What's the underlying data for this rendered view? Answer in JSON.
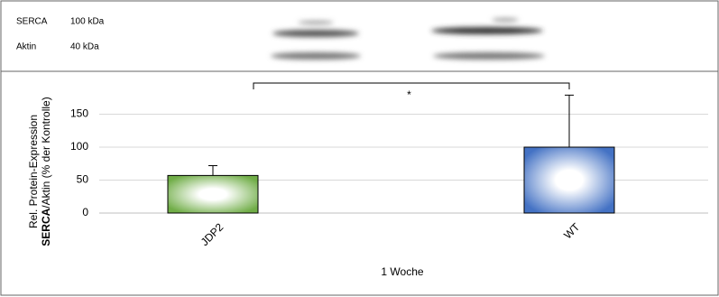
{
  "chart_data": {
    "type": "bar",
    "blot_labels": [
      [
        "SERCA",
        "100 kDa"
      ],
      [
        "Aktin",
        "40 kDa"
      ]
    ],
    "y_label": {
      "line1": "Rel. Protein-Expression",
      "bold": "SERCA",
      "rest": "/Aktin (% der Kontrolle)"
    },
    "x_label": "1 Woche",
    "categories": [
      "JDP2",
      "WT"
    ],
    "values": [
      57,
      100
    ],
    "errors": [
      15,
      79
    ],
    "colors": [
      "#70ad47",
      "#4472c4"
    ],
    "annotation": "*",
    "ylim": [
      0,
      180
    ],
    "yticks": [
      0,
      50,
      100,
      150
    ],
    "grid": true
  }
}
